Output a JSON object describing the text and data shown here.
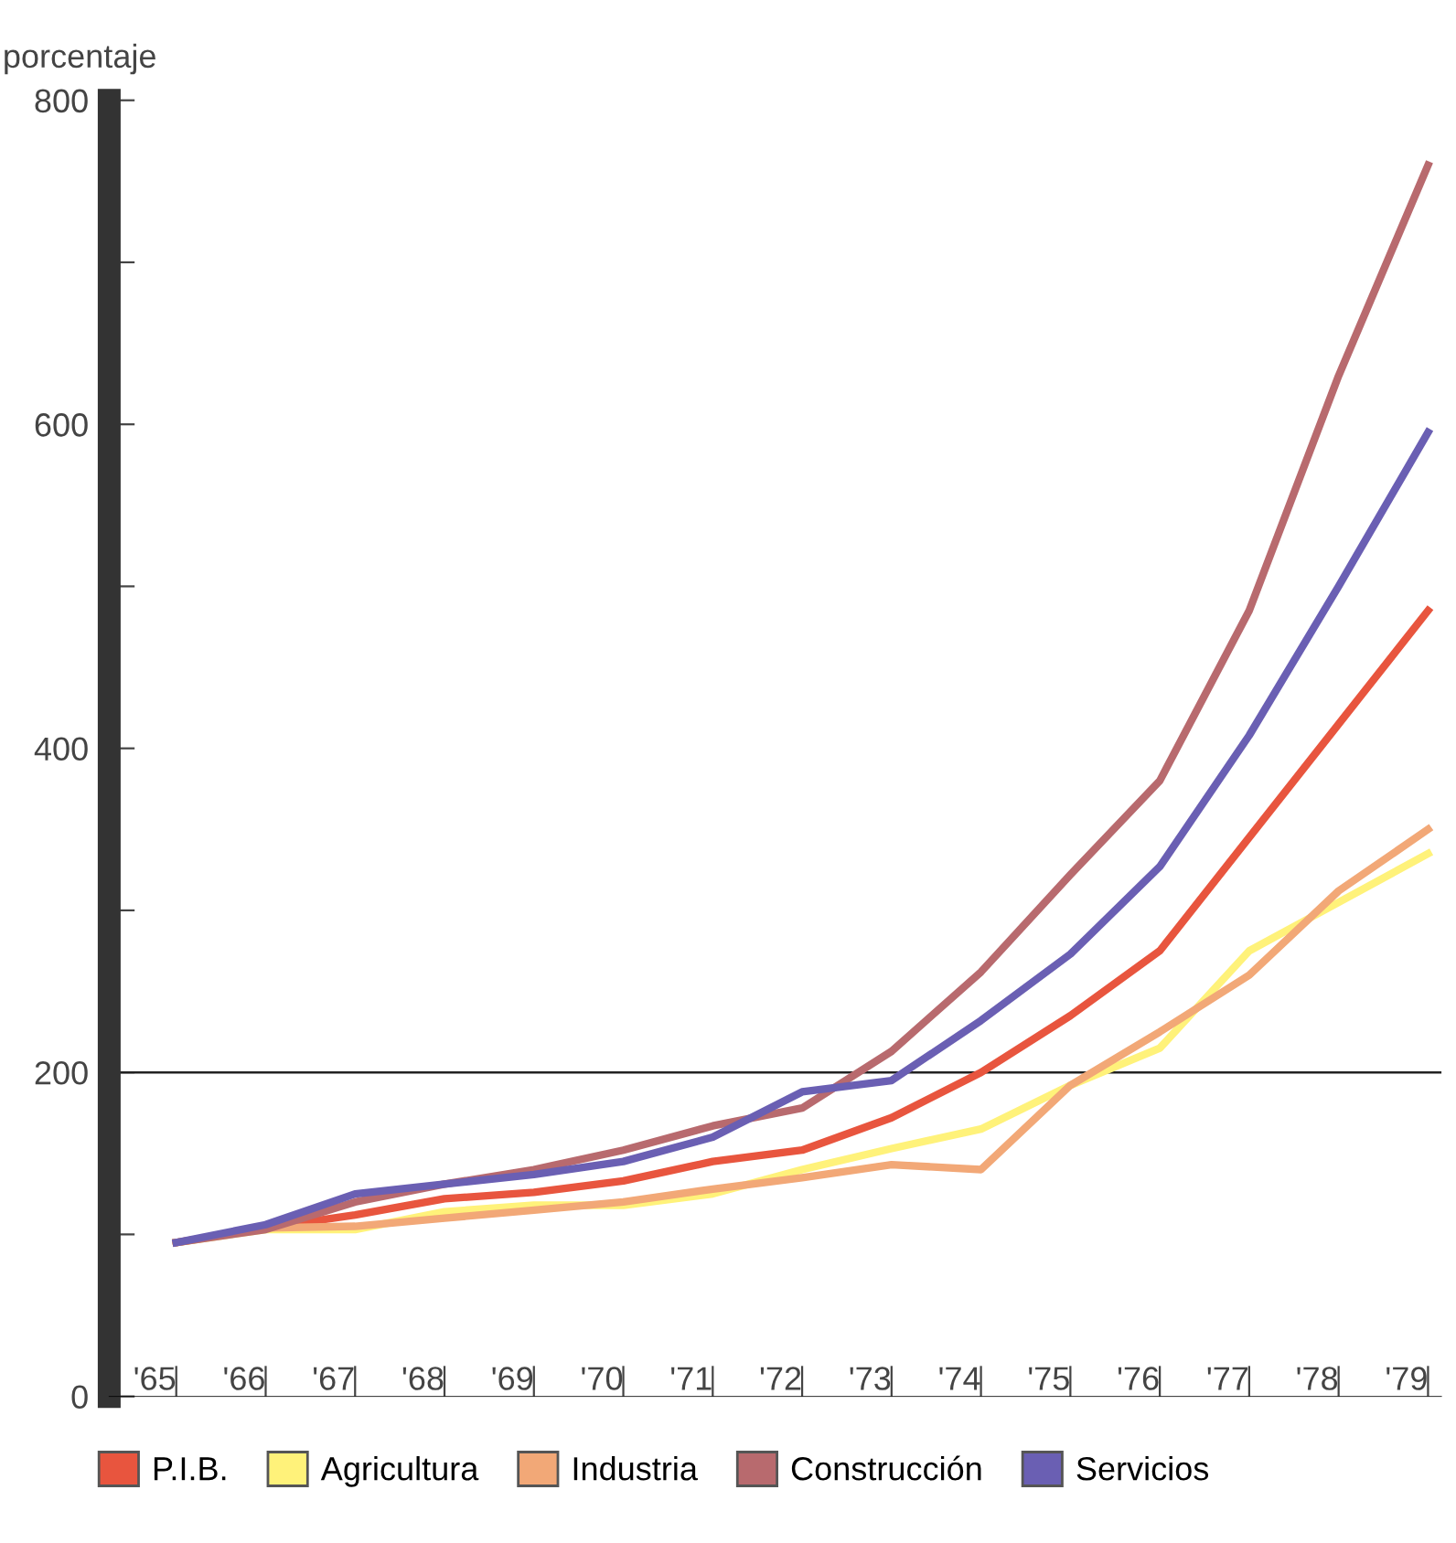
{
  "chart_data": {
    "type": "line",
    "ylabel": "porcentaje",
    "categories": [
      "'65",
      "'66",
      "'67",
      "'68",
      "'69",
      "'70",
      "'71",
      "'72",
      "'73",
      "'74",
      "'75",
      "'76",
      "'77",
      "'78",
      "'79"
    ],
    "series": [
      {
        "name": "P.I.B.",
        "color": "#e8553e",
        "values": [
          95,
          104,
          112,
          122,
          126,
          133,
          145,
          152,
          172,
          200,
          235,
          275,
          345,
          415,
          485
        ]
      },
      {
        "name": "Agricultura",
        "color": "#fff27a",
        "values": [
          95,
          103,
          103,
          114,
          118,
          118,
          125,
          140,
          153,
          165,
          192,
          215,
          275,
          305,
          335
        ]
      },
      {
        "name": "Industria",
        "color": "#f2a877",
        "values": [
          95,
          104,
          105,
          110,
          115,
          120,
          128,
          135,
          143,
          140,
          192,
          225,
          260,
          312,
          350
        ]
      },
      {
        "name": "Construcción",
        "color": "#b86a6e",
        "values": [
          95,
          103,
          120,
          131,
          140,
          152,
          167,
          178,
          213,
          262,
          322,
          380,
          485,
          630,
          760
        ]
      },
      {
        "name": "Servicios",
        "color": "#6a5fb3",
        "values": [
          95,
          106,
          125,
          131,
          137,
          145,
          160,
          188,
          195,
          232,
          273,
          327,
          408,
          500,
          595
        ]
      }
    ],
    "ylim": [
      0,
      800
    ],
    "yticks": [
      0,
      {
        "value": 100,
        "label": null
      },
      200,
      {
        "value": 300,
        "label": null
      },
      400,
      {
        "value": 500,
        "label": null
      },
      600,
      {
        "value": 700,
        "label": null
      },
      800
    ],
    "ref_lines": [
      {
        "axis": "y",
        "value": 200,
        "label": null,
        "color": "#222222"
      }
    ],
    "legend": "bottom",
    "grid": false,
    "marker": "none",
    "line_style": "solid"
  }
}
